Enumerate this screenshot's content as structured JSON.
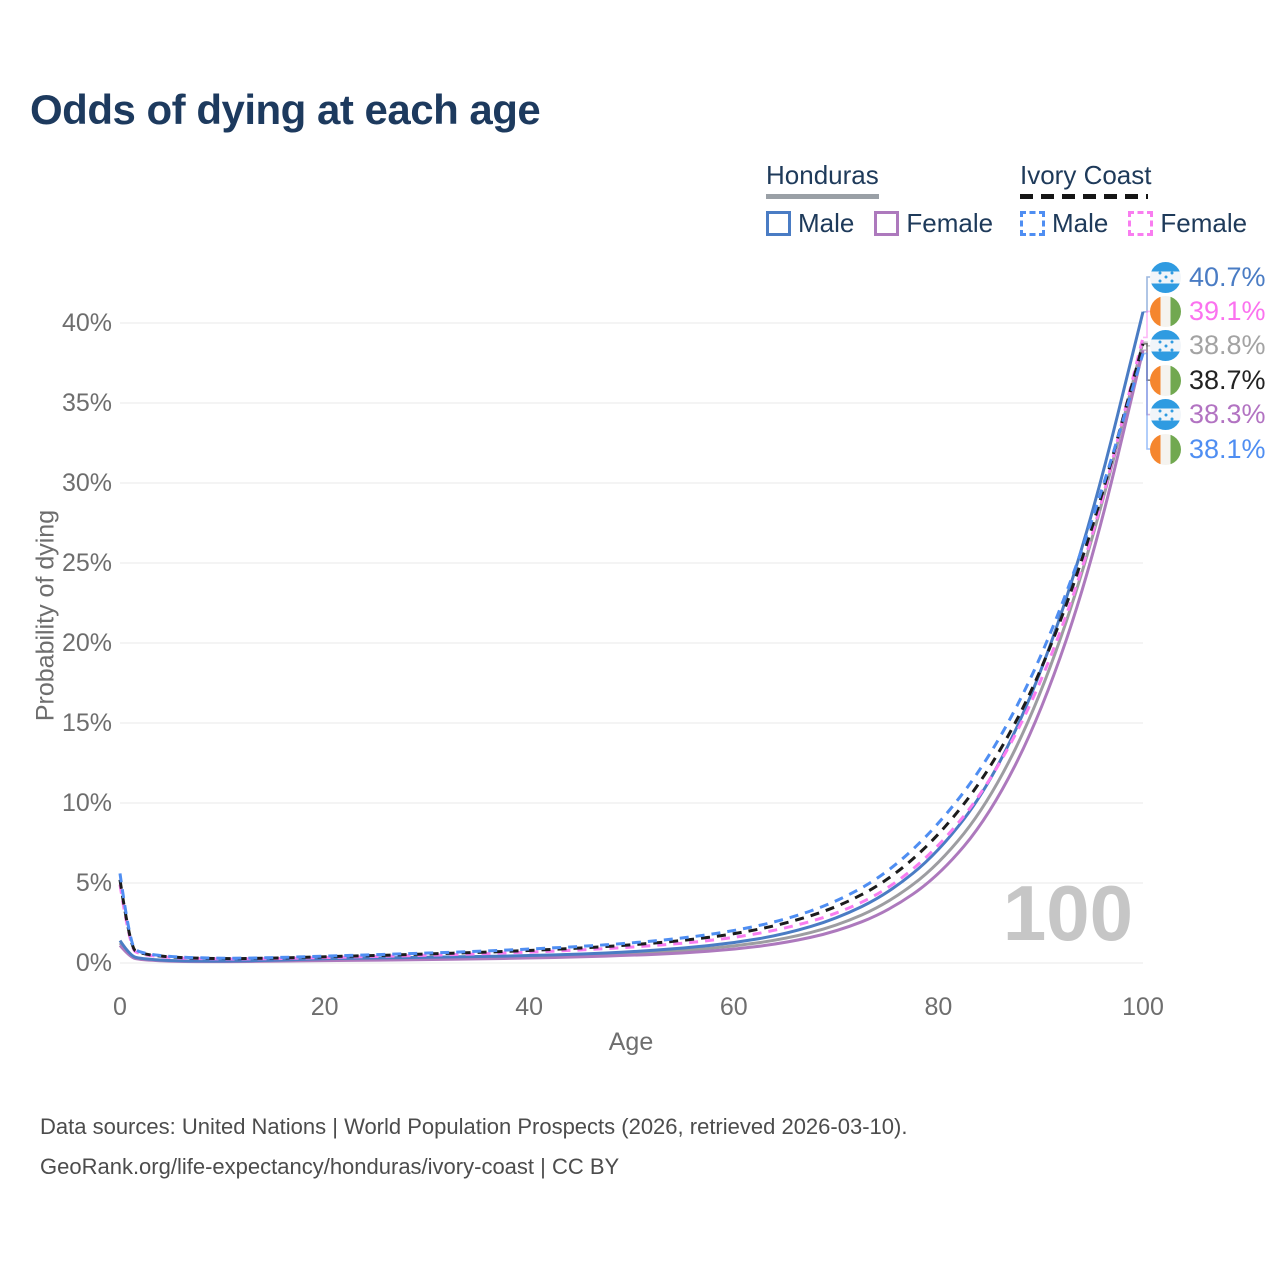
{
  "title": "Odds of dying at each age",
  "watermark": "100",
  "legend": {
    "honduras": {
      "label": "Honduras",
      "male": "Male",
      "female": "Female"
    },
    "ivory_coast": {
      "label": "Ivory Coast",
      "male": "Male",
      "female": "Female"
    }
  },
  "axes": {
    "y_title": "Probability of dying",
    "x_title": "Age",
    "y_ticks": [
      "0%",
      "5%",
      "10%",
      "15%",
      "20%",
      "25%",
      "30%",
      "35%",
      "40%"
    ],
    "x_ticks": [
      "0",
      "20",
      "40",
      "60",
      "80",
      "100"
    ]
  },
  "footer": {
    "line1": "Data sources: United Nations | World Population Prospects (2026, retrieved 2026-03-10).",
    "line2": "GeoRank.org/life-expectancy/honduras/ivory-coast | CC BY"
  },
  "colors": {
    "title_text": "#1d3a5e",
    "legend_text": "#1e3a5a",
    "axis_text": "#6e6e6e",
    "gridline": "#e9e9e9",
    "watermark_text": "#c6c6c6",
    "footer_text": "#4c4c4c",
    "honduras_underline": "#9aa0a6",
    "ivory_coast_underline": "#151515"
  },
  "chart_data": {
    "type": "line",
    "title": "Odds of dying at each age",
    "xlabel": "Age",
    "ylabel": "Probability of dying",
    "xlim": [
      0,
      100
    ],
    "ylim_percent": [
      0,
      42
    ],
    "grid": "horizontal-only",
    "legend_position": "top-right",
    "x_ages": [
      0,
      1,
      2,
      5,
      10,
      15,
      20,
      25,
      30,
      35,
      40,
      45,
      50,
      55,
      60,
      65,
      70,
      75,
      80,
      85,
      90,
      95,
      100
    ],
    "series": [
      {
        "id": "honduras-both",
        "name": "Honduras Both sexes",
        "country": "Honduras",
        "sex": "Both",
        "line": "solid",
        "color": "#9d9da1",
        "end_value_percent": 38.8,
        "values_percent": [
          1.25,
          0.4,
          0.24,
          0.12,
          0.1,
          0.14,
          0.21,
          0.25,
          0.28,
          0.32,
          0.38,
          0.46,
          0.58,
          0.76,
          1.05,
          1.5,
          2.3,
          3.7,
          6.1,
          10.1,
          16.6,
          26.1,
          38.8
        ]
      },
      {
        "id": "honduras-female",
        "name": "Honduras Female",
        "country": "Honduras",
        "sex": "Female",
        "line": "solid",
        "color": "#ad79bd",
        "end_value_percent": 38.3,
        "values_percent": [
          1.1,
          0.35,
          0.21,
          0.1,
          0.08,
          0.11,
          0.15,
          0.18,
          0.21,
          0.25,
          0.31,
          0.38,
          0.48,
          0.62,
          0.85,
          1.25,
          1.95,
          3.2,
          5.4,
          9.2,
          15.5,
          24.9,
          38.3
        ]
      },
      {
        "id": "honduras-male",
        "name": "Honduras Male",
        "country": "Honduras",
        "sex": "Male",
        "line": "solid",
        "color": "#4a7cc4",
        "end_value_percent": 40.7,
        "values_percent": [
          1.4,
          0.45,
          0.27,
          0.14,
          0.11,
          0.17,
          0.27,
          0.32,
          0.36,
          0.4,
          0.46,
          0.55,
          0.7,
          0.92,
          1.25,
          1.8,
          2.75,
          4.3,
          6.9,
          11.1,
          17.9,
          27.7,
          40.7
        ]
      },
      {
        "id": "ivory-coast-female",
        "name": "Ivory Coast Female",
        "country": "Ivory Coast",
        "sex": "Female",
        "line": "dashed",
        "color": "#f97df0",
        "end_value_percent": 39.1,
        "values_percent": [
          4.9,
          0.9,
          0.53,
          0.32,
          0.24,
          0.27,
          0.34,
          0.41,
          0.48,
          0.57,
          0.68,
          0.81,
          0.99,
          1.22,
          1.58,
          2.15,
          3.05,
          4.55,
          7.2,
          11.2,
          17.3,
          26.2,
          39.1
        ]
      },
      {
        "id": "ivory-coast-both",
        "name": "Ivory Coast Both sexes",
        "country": "Ivory Coast",
        "sex": "Both",
        "line": "dashed",
        "color": "#1c1c1c",
        "end_value_percent": 38.7,
        "values_percent": [
          5.2,
          0.97,
          0.57,
          0.35,
          0.26,
          0.3,
          0.39,
          0.47,
          0.56,
          0.66,
          0.78,
          0.93,
          1.13,
          1.4,
          1.8,
          2.45,
          3.45,
          5.1,
          7.9,
          12.0,
          18.0,
          26.8,
          38.7
        ]
      },
      {
        "id": "ivory-coast-male",
        "name": "Ivory Coast Male",
        "country": "Ivory Coast",
        "sex": "Male",
        "line": "dashed",
        "color": "#4f8ef2",
        "end_value_percent": 38.1,
        "values_percent": [
          5.6,
          1.05,
          0.62,
          0.38,
          0.28,
          0.33,
          0.43,
          0.52,
          0.62,
          0.73,
          0.87,
          1.03,
          1.25,
          1.55,
          2.0,
          2.7,
          3.8,
          5.6,
          8.6,
          12.8,
          18.9,
          27.4,
          38.1
        ]
      }
    ],
    "end_labels": [
      {
        "series": "honduras-male",
        "flag": "honduras",
        "value": "40.7%",
        "color": "#4a7cc4"
      },
      {
        "series": "ivory-coast-female",
        "flag": "ivory-coast",
        "value": "39.1%",
        "color": "#fb72ef"
      },
      {
        "series": "honduras-both",
        "flag": "honduras",
        "value": "38.8%",
        "color": "#a3a3a3"
      },
      {
        "series": "ivory-coast-both",
        "flag": "ivory-coast",
        "value": "38.7%",
        "color": "#222222"
      },
      {
        "series": "honduras-female",
        "flag": "honduras",
        "value": "38.3%",
        "color": "#b273c2"
      },
      {
        "series": "ivory-coast-male",
        "flag": "ivory-coast",
        "value": "38.1%",
        "color": "#4f8ef2"
      }
    ]
  }
}
